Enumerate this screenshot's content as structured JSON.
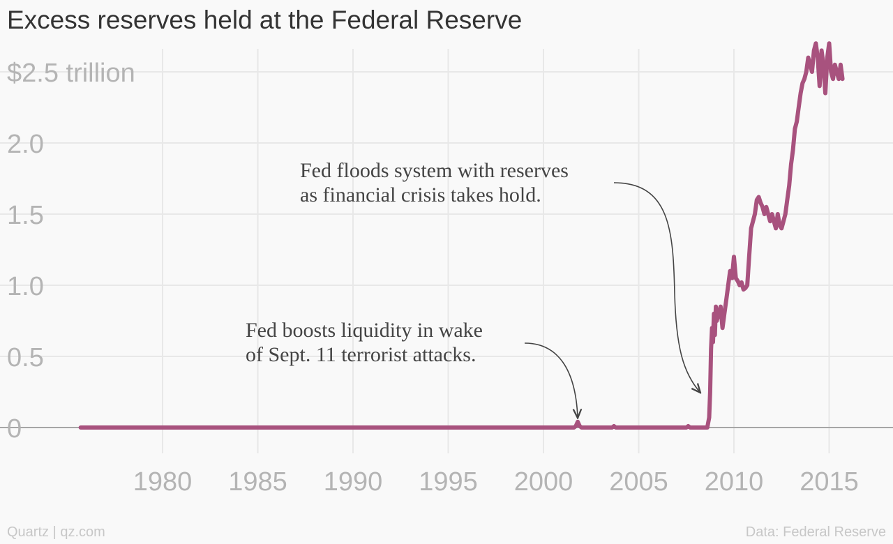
{
  "chart_data": {
    "type": "line",
    "title": "Excess reserves held at the Federal Reserve",
    "xlabel": "",
    "ylabel": "",
    "xlim": [
      1975,
      2018
    ],
    "ylim": [
      -0.15,
      2.75
    ],
    "x_ticks": [
      1980,
      1985,
      1990,
      1995,
      2000,
      2005,
      2010,
      2015
    ],
    "y_ticks": [
      {
        "value": 0,
        "label": "0"
      },
      {
        "value": 0.5,
        "label": "0.5"
      },
      {
        "value": 1.0,
        "label": "1.0"
      },
      {
        "value": 1.5,
        "label": "1.5"
      },
      {
        "value": 2.0,
        "label": "2.0"
      },
      {
        "value": 2.5,
        "label": "$2.5 trillion"
      }
    ],
    "grid": true,
    "series": [
      {
        "color": "#a8527e",
        "x": [
          1975.7,
          2001.6,
          2001.7,
          2001.8,
          2001.9,
          2002.0,
          2003.6,
          2003.7,
          2003.8,
          2007.5,
          2007.6,
          2007.7,
          2008.6,
          2008.7,
          2008.75,
          2008.8,
          2008.85,
          2008.9,
          2008.95,
          2009.0,
          2009.05,
          2009.1,
          2009.2,
          2009.3,
          2009.4,
          2009.5,
          2009.6,
          2009.7,
          2009.8,
          2009.9,
          2010.0,
          2010.1,
          2010.2,
          2010.3,
          2010.4,
          2010.5,
          2010.6,
          2010.7,
          2010.8,
          2010.9,
          2011.0,
          2011.1,
          2011.2,
          2011.3,
          2011.4,
          2011.5,
          2011.6,
          2011.7,
          2011.8,
          2011.9,
          2012.0,
          2012.1,
          2012.2,
          2012.3,
          2012.4,
          2012.5,
          2012.6,
          2012.7,
          2012.8,
          2012.9,
          2013.0,
          2013.1,
          2013.2,
          2013.3,
          2013.4,
          2013.5,
          2013.6,
          2013.7,
          2013.8,
          2013.9,
          2014.0,
          2014.1,
          2014.2,
          2014.3,
          2014.4,
          2014.5,
          2014.6,
          2014.7,
          2014.8,
          2014.9,
          2015.0,
          2015.1,
          2015.2,
          2015.3,
          2015.4,
          2015.5,
          2015.6,
          2015.7
        ],
        "values": [
          0.0,
          0.0,
          0.01,
          0.04,
          0.01,
          0.0,
          0.0,
          0.01,
          0.0,
          0.0,
          0.01,
          0.0,
          0.0,
          0.07,
          0.25,
          0.55,
          0.7,
          0.6,
          0.8,
          0.65,
          0.85,
          0.75,
          0.8,
          0.85,
          0.7,
          0.8,
          0.9,
          1.0,
          1.1,
          1.05,
          1.2,
          1.05,
          1.03,
          1.0,
          1.02,
          0.97,
          0.98,
          1.0,
          1.2,
          1.4,
          1.45,
          1.5,
          1.6,
          1.62,
          1.58,
          1.55,
          1.5,
          1.55,
          1.5,
          1.45,
          1.5,
          1.45,
          1.4,
          1.5,
          1.42,
          1.4,
          1.45,
          1.5,
          1.6,
          1.7,
          1.85,
          1.95,
          2.1,
          2.15,
          2.25,
          2.35,
          2.42,
          2.45,
          2.5,
          2.6,
          2.55,
          2.5,
          2.65,
          2.7,
          2.6,
          2.4,
          2.65,
          2.55,
          2.35,
          2.6,
          2.7,
          2.5,
          2.45,
          2.55,
          2.5,
          2.45,
          2.55,
          2.45
        ]
      }
    ],
    "annotations": [
      {
        "lines": [
          "Fed floods system with reserves",
          "as financial crisis takes hold."
        ],
        "target": {
          "x": 2008.0,
          "y": 0.22
        }
      },
      {
        "lines": [
          "Fed boosts liquidity in wake",
          "of Sept. 11 terrorist attacks."
        ],
        "target": {
          "x": 2001.8,
          "y": 0.05
        }
      }
    ]
  },
  "footer": {
    "source_left": "Quartz | qz.com",
    "source_right": "Data: Federal Reserve"
  }
}
